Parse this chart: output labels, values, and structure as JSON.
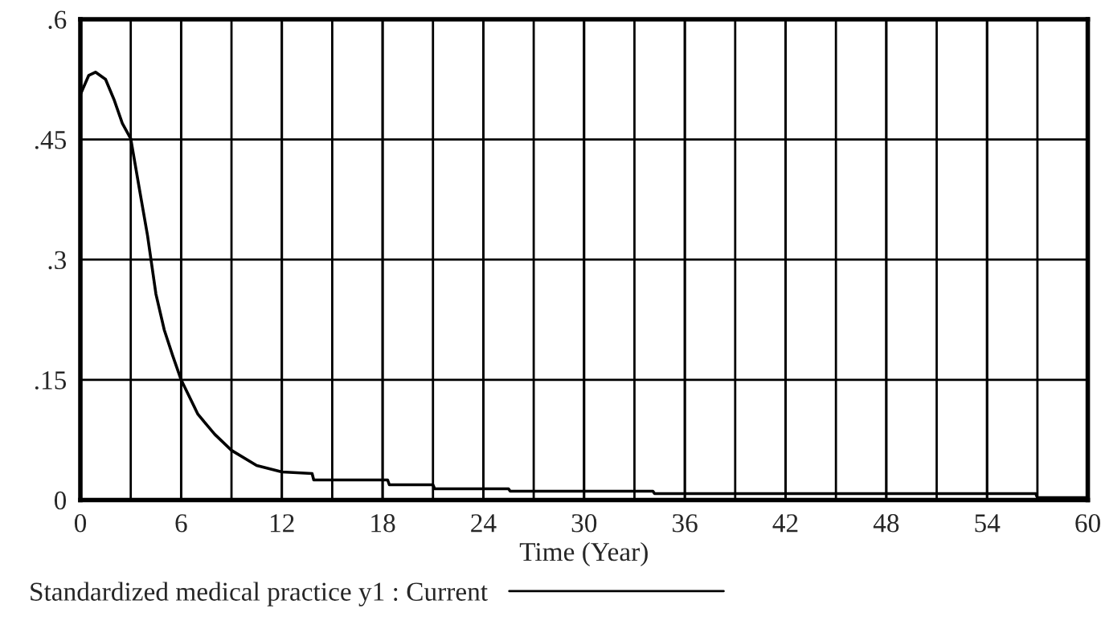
{
  "chart_data": {
    "type": "line",
    "xlabel": "Time (Year)",
    "xlim": [
      0,
      60
    ],
    "xticks": [
      0,
      6,
      12,
      18,
      24,
      30,
      36,
      42,
      48,
      54,
      60
    ],
    "ylim": [
      0,
      0.6
    ],
    "yticks": [
      {
        "value": 0,
        "label": "0"
      },
      {
        "value": 0.15,
        "label": ".15"
      },
      {
        "value": 0.3,
        "label": ".3"
      },
      {
        "value": 0.45,
        "label": ".45"
      },
      {
        "value": 0.6,
        "label": ".6"
      }
    ],
    "grid": true,
    "legend": "bottom",
    "line_style": "solid",
    "series": [
      {
        "name": "Standardized medical practice y1 : Current",
        "color": "#000000",
        "x": [
          0,
          0.5,
          0.9,
          1.5,
          2,
          2.5,
          3,
          3.5,
          4,
          4.5,
          5,
          5.5,
          6,
          7,
          8,
          9,
          10.5,
          12,
          13.8,
          13.9,
          18.3,
          18.4,
          21,
          21.1,
          25.5,
          25.6,
          34.1,
          34.2,
          56.9,
          57,
          60
        ],
        "values": [
          0.506,
          0.53,
          0.534,
          0.525,
          0.5,
          0.47,
          0.451,
          0.39,
          0.33,
          0.257,
          0.212,
          0.18,
          0.15,
          0.107,
          0.082,
          0.062,
          0.043,
          0.035,
          0.033,
          0.025,
          0.025,
          0.019,
          0.019,
          0.014,
          0.014,
          0.011,
          0.011,
          0.008,
          0.008,
          0.003,
          0.003
        ]
      }
    ]
  }
}
